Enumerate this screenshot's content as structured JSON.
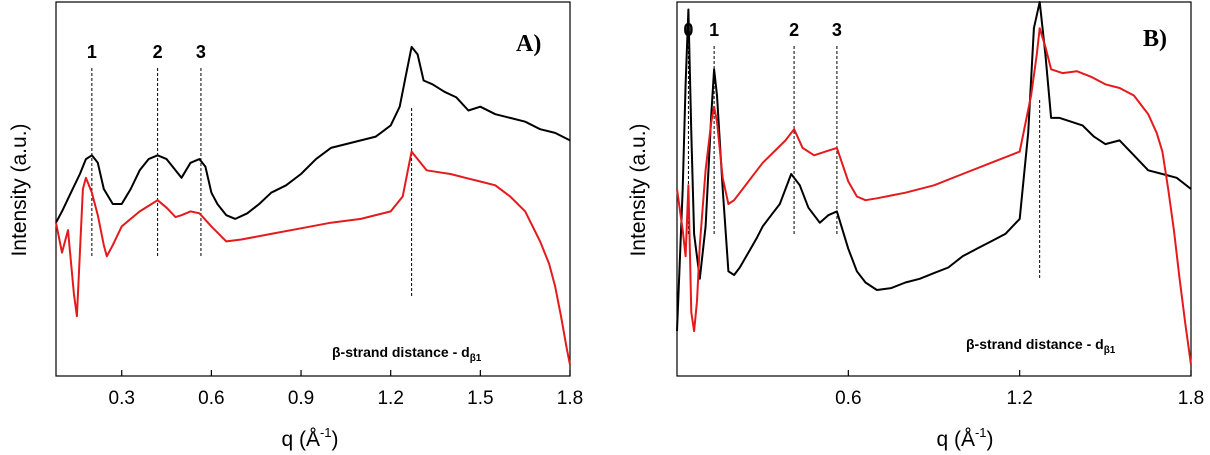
{
  "chart_data": [
    {
      "type": "line",
      "panel_label": "A)",
      "xlabel": "q (Å",
      "xlabel_sup": "-1",
      "xlabel_close": ")",
      "ylabel": "Intensity (a.u.)",
      "xlim": [
        0.08,
        1.8
      ],
      "ylim": [
        0,
        10
      ],
      "x_ticks": [
        0.3,
        0.6,
        0.9,
        1.2,
        1.5,
        1.8
      ],
      "x_tick_labels": [
        "0.3",
        "0.6",
        "0.9",
        "1.2",
        "1.5",
        "1.8"
      ],
      "peaks": [
        {
          "label": "1",
          "q": 0.2
        },
        {
          "label": "2",
          "q": 0.42
        },
        {
          "label": "3",
          "q": 0.565
        }
      ],
      "guide_q": 1.27,
      "annotation": "β-strand distance - d",
      "annotation_sub": "β1",
      "series": [
        {
          "color": "#000000",
          "x": [
            0.08,
            0.1,
            0.13,
            0.16,
            0.18,
            0.2,
            0.22,
            0.24,
            0.27,
            0.3,
            0.33,
            0.36,
            0.39,
            0.42,
            0.45,
            0.48,
            0.5,
            0.53,
            0.56,
            0.58,
            0.6,
            0.62,
            0.65,
            0.68,
            0.72,
            0.76,
            0.8,
            0.85,
            0.9,
            0.95,
            1.0,
            1.05,
            1.1,
            1.15,
            1.2,
            1.23,
            1.25,
            1.27,
            1.29,
            1.31,
            1.34,
            1.38,
            1.42,
            1.46,
            1.5,
            1.55,
            1.6,
            1.65,
            1.7,
            1.75,
            1.8
          ],
          "y": [
            4.1,
            4.4,
            4.9,
            5.4,
            5.8,
            5.9,
            5.7,
            5.0,
            4.6,
            4.6,
            5.0,
            5.5,
            5.8,
            5.9,
            5.8,
            5.5,
            5.3,
            5.7,
            5.8,
            5.6,
            4.9,
            4.6,
            4.3,
            4.2,
            4.35,
            4.6,
            4.9,
            5.1,
            5.4,
            5.8,
            6.1,
            6.2,
            6.3,
            6.4,
            6.7,
            7.2,
            8.0,
            8.8,
            8.6,
            7.9,
            7.8,
            7.6,
            7.45,
            7.1,
            7.2,
            7.0,
            6.9,
            6.8,
            6.6,
            6.5,
            6.3
          ]
        },
        {
          "color": "#e41a1c",
          "x": [
            0.08,
            0.1,
            0.12,
            0.14,
            0.15,
            0.16,
            0.17,
            0.18,
            0.19,
            0.2,
            0.22,
            0.24,
            0.25,
            0.27,
            0.3,
            0.33,
            0.36,
            0.4,
            0.42,
            0.45,
            0.48,
            0.5,
            0.53,
            0.56,
            0.6,
            0.65,
            0.7,
            0.8,
            0.9,
            1.0,
            1.1,
            1.2,
            1.24,
            1.26,
            1.27,
            1.29,
            1.32,
            1.36,
            1.4,
            1.45,
            1.5,
            1.55,
            1.6,
            1.65,
            1.7,
            1.73,
            1.75,
            1.77,
            1.79,
            1.8
          ],
          "y": [
            4.1,
            3.3,
            3.9,
            2.2,
            1.6,
            3.3,
            5.0,
            5.3,
            5.1,
            4.9,
            4.3,
            3.5,
            3.2,
            3.5,
            4.0,
            4.2,
            4.4,
            4.6,
            4.7,
            4.5,
            4.25,
            4.3,
            4.4,
            4.35,
            4.0,
            3.6,
            3.65,
            3.8,
            3.95,
            4.1,
            4.2,
            4.4,
            4.8,
            5.6,
            6.0,
            5.8,
            5.5,
            5.45,
            5.4,
            5.3,
            5.2,
            5.1,
            4.8,
            4.4,
            3.6,
            3.0,
            2.4,
            1.6,
            0.7,
            0.3
          ]
        }
      ]
    },
    {
      "type": "line",
      "panel_label": "B)",
      "xlabel": "q (Å",
      "xlabel_sup": "-1",
      "xlabel_close": ")",
      "ylabel": "Intensity (a.u.)",
      "xlim": [
        0.0,
        1.8
      ],
      "ylim": [
        0,
        10
      ],
      "x_ticks": [
        0.6,
        1.2,
        1.8
      ],
      "x_tick_labels": [
        "0.6",
        "1.2",
        "1.8"
      ],
      "peaks": [
        {
          "label": "0",
          "q": 0.04
        },
        {
          "label": "1",
          "q": 0.13
        },
        {
          "label": "2",
          "q": 0.41
        },
        {
          "label": "3",
          "q": 0.56
        }
      ],
      "guide_q": 1.27,
      "annotation": "β-strand distance - d",
      "annotation_sub": "β1",
      "series": [
        {
          "color": "#000000",
          "x": [
            0.0,
            0.02,
            0.03,
            0.04,
            0.05,
            0.06,
            0.08,
            0.1,
            0.12,
            0.13,
            0.14,
            0.16,
            0.18,
            0.2,
            0.22,
            0.25,
            0.28,
            0.3,
            0.33,
            0.36,
            0.4,
            0.43,
            0.46,
            0.5,
            0.53,
            0.56,
            0.6,
            0.63,
            0.66,
            0.7,
            0.75,
            0.8,
            0.85,
            0.9,
            0.95,
            1.0,
            1.05,
            1.1,
            1.15,
            1.2,
            1.23,
            1.25,
            1.27,
            1.29,
            1.31,
            1.34,
            1.38,
            1.42,
            1.46,
            1.5,
            1.55,
            1.6,
            1.65,
            1.7,
            1.75,
            1.8
          ],
          "y": [
            1.2,
            5.0,
            7.8,
            9.8,
            6.5,
            3.8,
            2.6,
            4.0,
            7.0,
            8.2,
            7.5,
            5.0,
            2.8,
            2.7,
            2.9,
            3.3,
            3.7,
            4.0,
            4.3,
            4.6,
            5.4,
            5.1,
            4.5,
            4.1,
            4.3,
            4.4,
            3.4,
            2.8,
            2.5,
            2.3,
            2.35,
            2.5,
            2.6,
            2.75,
            2.9,
            3.2,
            3.4,
            3.6,
            3.8,
            4.2,
            6.5,
            9.3,
            10.0,
            8.6,
            6.9,
            6.9,
            6.8,
            6.7,
            6.4,
            6.2,
            6.3,
            5.9,
            5.5,
            5.4,
            5.3,
            5.0
          ]
        },
        {
          "color": "#e41a1c",
          "x": [
            0.0,
            0.02,
            0.03,
            0.04,
            0.05,
            0.06,
            0.07,
            0.08,
            0.1,
            0.12,
            0.13,
            0.14,
            0.16,
            0.18,
            0.2,
            0.23,
            0.26,
            0.3,
            0.34,
            0.38,
            0.41,
            0.44,
            0.48,
            0.52,
            0.56,
            0.6,
            0.63,
            0.66,
            0.7,
            0.8,
            0.9,
            1.0,
            1.1,
            1.2,
            1.24,
            1.26,
            1.27,
            1.29,
            1.31,
            1.35,
            1.4,
            1.45,
            1.5,
            1.55,
            1.6,
            1.65,
            1.68,
            1.7,
            1.72,
            1.74,
            1.76,
            1.78,
            1.8
          ],
          "y": [
            5.0,
            3.9,
            3.2,
            5.1,
            1.7,
            1.2,
            2.0,
            3.5,
            5.5,
            6.8,
            7.2,
            6.8,
            5.3,
            4.6,
            4.7,
            5.0,
            5.3,
            5.7,
            6.0,
            6.3,
            6.6,
            6.1,
            5.9,
            6.0,
            6.1,
            5.2,
            4.8,
            4.7,
            4.75,
            4.9,
            5.1,
            5.4,
            5.7,
            6.0,
            7.5,
            8.6,
            9.3,
            8.8,
            8.2,
            8.1,
            8.15,
            8.0,
            7.8,
            7.7,
            7.5,
            7.0,
            6.5,
            6.0,
            5.0,
            3.9,
            2.6,
            1.4,
            0.3
          ]
        }
      ]
    }
  ]
}
